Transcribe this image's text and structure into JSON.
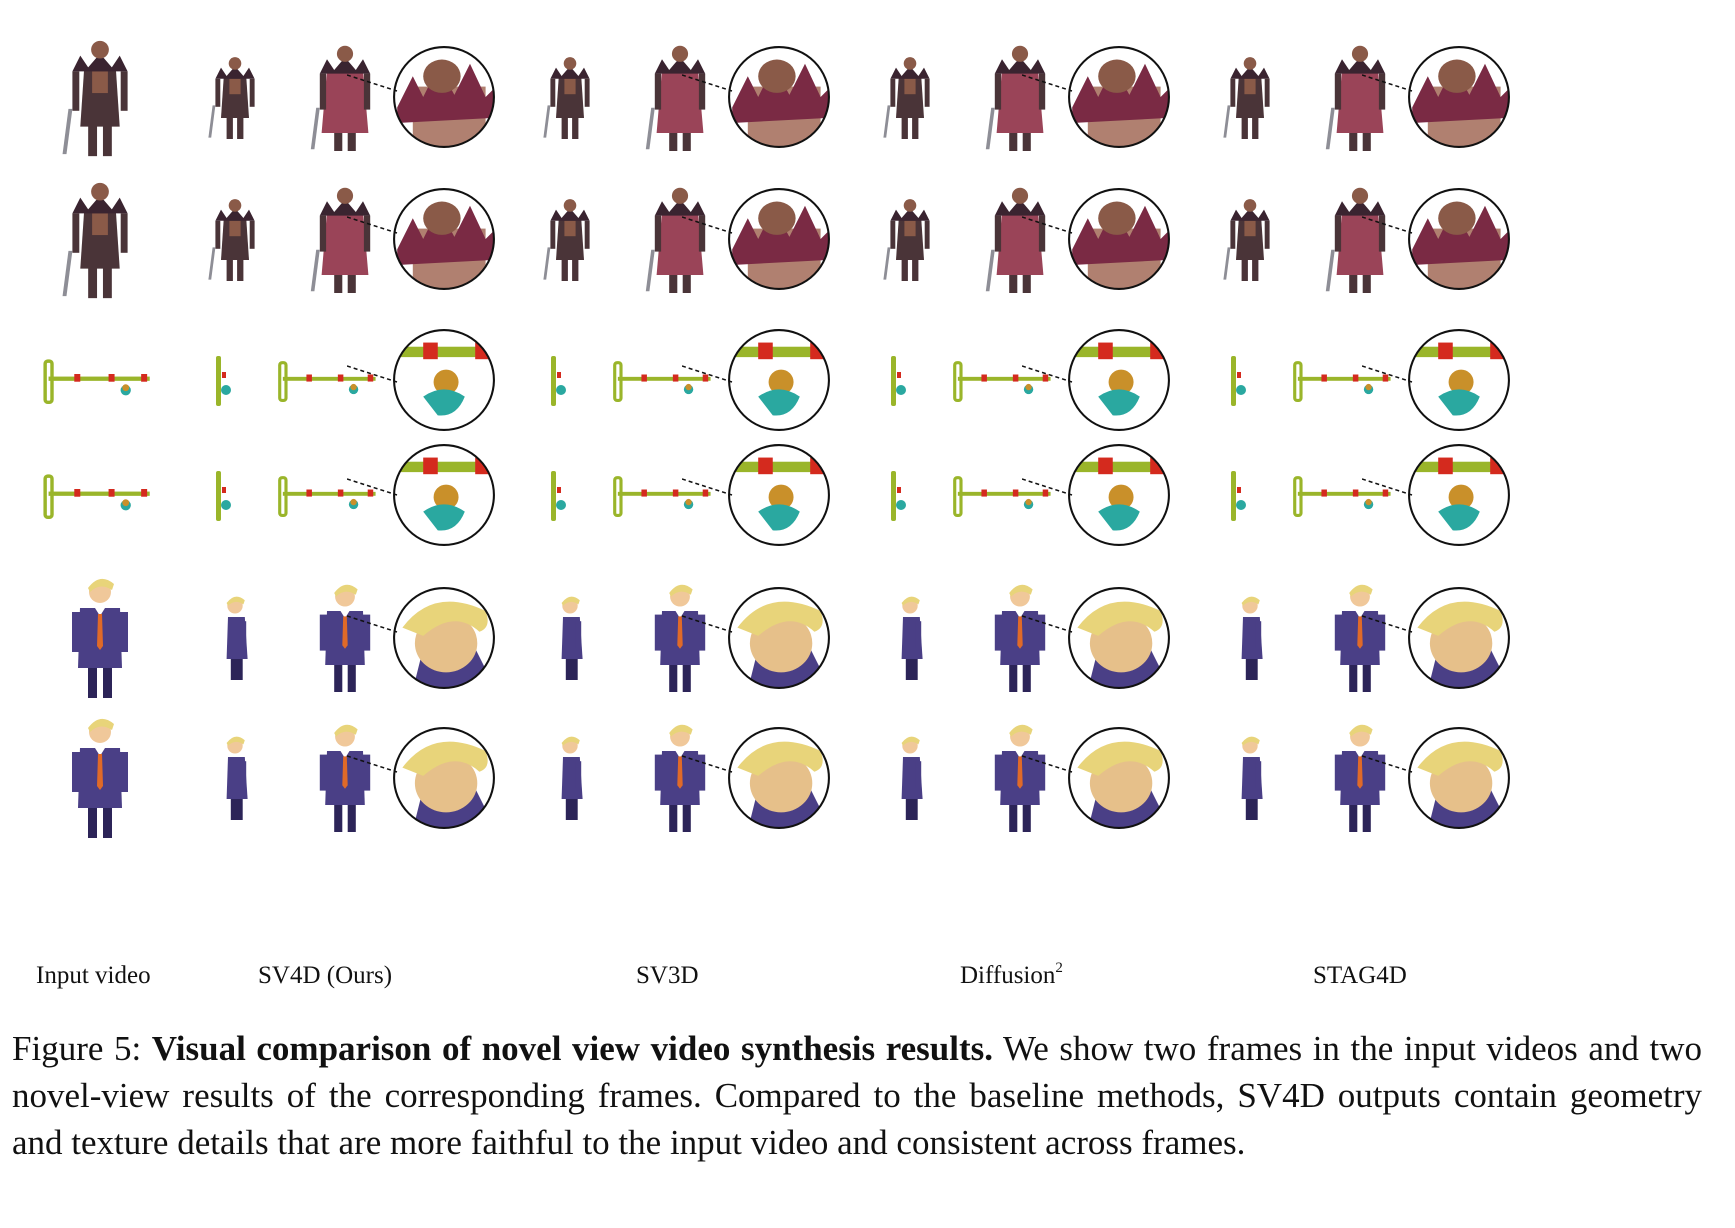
{
  "columns": [
    {
      "label": "Input video",
      "sup": ""
    },
    {
      "label": "SV4D (Ours)",
      "sup": ""
    },
    {
      "label": "SV3D",
      "sup": ""
    },
    {
      "label": "Diffusion",
      "sup": "2"
    },
    {
      "label": "STAG4D",
      "sup": ""
    }
  ],
  "subjects": [
    "warrior",
    "crane",
    "figure"
  ],
  "caption": {
    "prefix": "Figure 5: ",
    "title": "Visual comparison of novel view video synthesis results.",
    "body": " We show two frames in the input videos and two novel-view results of the corresponding frames. Compared to the baseline methods, SV4D outputs contain geometry and texture details that are more faithful to the input video and consistent across frames."
  },
  "colors": {
    "warrior_armor": "#4a3438",
    "warrior_cape": "#9a4458",
    "warrior_skin": "#8a5a48",
    "crane_bar": "#9ab52a",
    "crane_red": "#d42a1e",
    "crane_teal": "#2aa8a0",
    "figure_suit": "#4a3f86",
    "figure_hair": "#e8d47a",
    "figure_tie": "#e06a28"
  }
}
